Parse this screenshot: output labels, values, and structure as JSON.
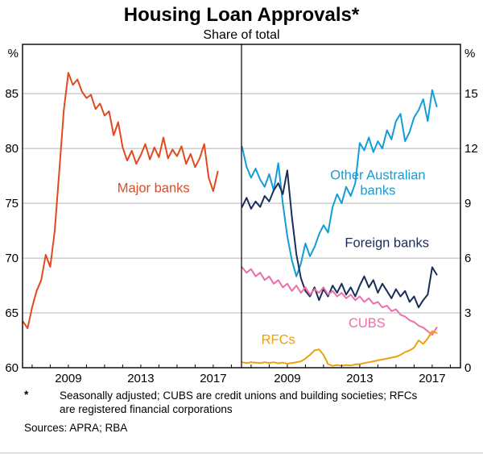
{
  "title": "Housing Loan Approvals*",
  "subtitle": "Share of total",
  "footnotes": {
    "marker": "*",
    "note": "Seasonally adjusted; CUBS are credit unions and building societies; RFCs are registered financial corporations",
    "sources": "Sources: APRA; RBA"
  },
  "chart_data": {
    "type": "line",
    "title": "Housing Loan Approvals*",
    "subtitle": "Share of total",
    "grid": true,
    "x_start": 2006.5,
    "x_step": 0.25,
    "panels": [
      {
        "name": "left-panel",
        "y_axis_side": "left",
        "y_unit": "%",
        "ylim": [
          60,
          89.5
        ],
        "yticks": [
          60,
          65,
          70,
          75,
          80,
          85
        ],
        "xlim": [
          2006.47,
          2018.56
        ],
        "xticks": [
          2009,
          2013,
          2017
        ],
        "series": [
          {
            "name": "Major banks",
            "color": "#E2491F",
            "label": {
              "lines": [
                "Major banks"
              ],
              "x": 2013.7,
              "y": 76.0
            },
            "values": [
              64.2,
              63.6,
              65.5,
              67.0,
              68.0,
              70.3,
              69.2,
              72.5,
              78.0,
              83.5,
              86.9,
              85.8,
              86.3,
              85.2,
              84.6,
              84.9,
              83.6,
              84.1,
              83.0,
              83.4,
              81.2,
              82.4,
              80.1,
              78.9,
              79.8,
              78.6,
              79.4,
              80.4,
              79.0,
              80.1,
              79.2,
              81.0,
              79.1,
              79.9,
              79.3,
              80.2,
              78.6,
              79.5,
              78.3,
              79.1,
              80.4,
              77.3,
              76.1,
              77.9
            ]
          }
        ]
      },
      {
        "name": "right-panel",
        "y_axis_side": "right",
        "y_unit": "%",
        "ylim": [
          0,
          17.7
        ],
        "yticks": [
          0,
          3,
          6,
          9,
          12,
          15
        ],
        "xlim": [
          2006.47,
          2018.56
        ],
        "xticks": [
          2009,
          2013,
          2017
        ],
        "series": [
          {
            "name": "Other Australian banks",
            "color": "#149CD7",
            "label": {
              "lines": [
                "Other Australian",
                "banks"
              ],
              "x": 2014.0,
              "y": 10.3
            },
            "values": [
              12.1,
              11.0,
              10.4,
              10.9,
              10.3,
              9.9,
              10.6,
              9.7,
              11.2,
              9.0,
              7.2,
              5.9,
              5.0,
              5.7,
              6.8,
              6.1,
              6.6,
              7.3,
              7.8,
              7.4,
              8.8,
              9.5,
              9.0,
              9.9,
              9.4,
              10.1,
              12.3,
              11.9,
              12.6,
              11.8,
              12.4,
              12.0,
              13.0,
              12.5,
              13.5,
              13.9,
              12.4,
              12.9,
              13.7,
              14.1,
              14.7,
              13.5,
              15.2,
              14.3
            ]
          },
          {
            "name": "Foreign banks",
            "color": "#1A2E5A",
            "label": {
              "lines": [
                "Foreign banks"
              ],
              "x": 2014.5,
              "y": 6.6
            },
            "values": [
              8.8,
              9.3,
              8.7,
              9.1,
              8.8,
              9.4,
              9.1,
              9.7,
              10.1,
              9.5,
              10.8,
              8.3,
              6.2,
              4.9,
              4.2,
              3.9,
              4.4,
              3.7,
              4.3,
              3.9,
              4.5,
              4.1,
              4.6,
              4.0,
              4.4,
              3.9,
              4.5,
              5.0,
              4.4,
              4.8,
              4.1,
              4.6,
              4.2,
              3.8,
              4.3,
              3.9,
              4.2,
              3.6,
              3.9,
              3.3,
              3.7,
              4.0,
              5.5,
              5.1
            ]
          },
          {
            "name": "CUBS",
            "color": "#ED6FA9",
            "label": {
              "lines": [
                "CUBS"
              ],
              "x": 2013.4,
              "y": 2.2
            },
            "values": [
              5.5,
              5.2,
              5.4,
              5.0,
              5.2,
              4.8,
              5.0,
              4.6,
              4.8,
              4.4,
              4.6,
              4.2,
              4.5,
              4.1,
              4.4,
              4.0,
              4.3,
              4.1,
              4.4,
              4.0,
              4.2,
              3.9,
              4.1,
              3.8,
              4.0,
              3.7,
              3.9,
              3.6,
              3.8,
              3.5,
              3.6,
              3.3,
              3.4,
              3.1,
              3.2,
              2.9,
              2.8,
              2.6,
              2.5,
              2.3,
              2.2,
              2.0,
              1.8,
              2.2
            ]
          },
          {
            "name": "RFCs",
            "color": "#EFA00B",
            "label": {
              "lines": [
                "RFCs"
              ],
              "x": 2008.5,
              "y": 1.3
            },
            "values": [
              0.3,
              0.25,
              0.3,
              0.28,
              0.25,
              0.3,
              0.26,
              0.3,
              0.24,
              0.28,
              0.22,
              0.26,
              0.3,
              0.35,
              0.5,
              0.7,
              0.95,
              1.0,
              0.7,
              0.2,
              0.1,
              0.15,
              0.1,
              0.15,
              0.12,
              0.18,
              0.2,
              0.25,
              0.3,
              0.35,
              0.4,
              0.45,
              0.5,
              0.55,
              0.6,
              0.7,
              0.85,
              0.95,
              1.1,
              1.5,
              1.3,
              1.6,
              2.0,
              1.9
            ]
          }
        ]
      }
    ]
  }
}
